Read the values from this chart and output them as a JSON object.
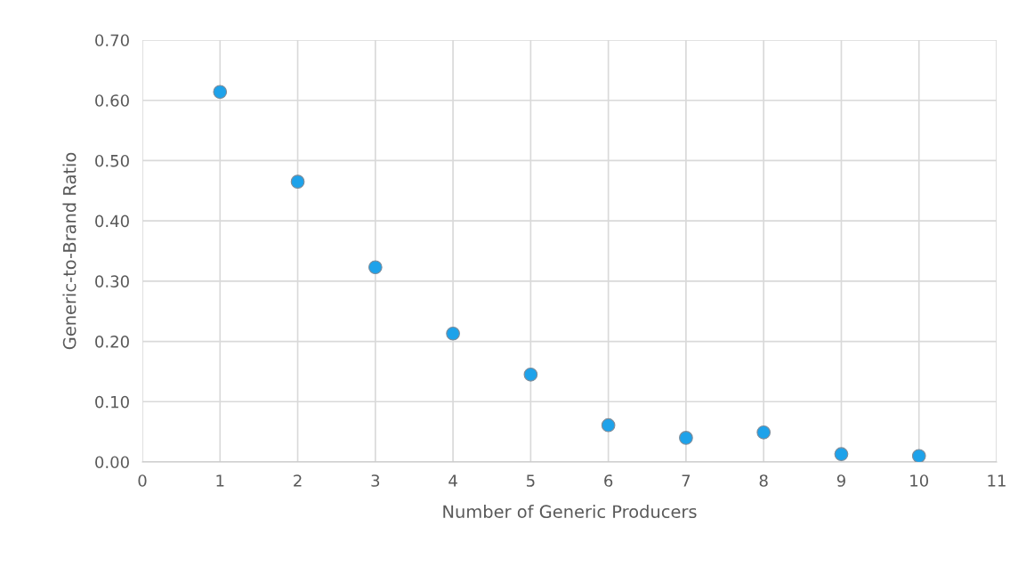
{
  "chart_data": {
    "type": "scatter",
    "xlabel": "Number of Generic Producers",
    "ylabel": "Generic-to-Brand Ratio",
    "x": [
      1,
      2,
      3,
      4,
      5,
      6,
      7,
      8,
      9,
      10
    ],
    "series": [
      {
        "color": "#1ea2ea",
        "values": [
          0.614,
          0.465,
          0.323,
          0.213,
          0.145,
          0.061,
          0.04,
          0.049,
          0.013,
          0.01
        ]
      }
    ],
    "xlim": [
      0,
      11
    ],
    "xticks": [
      0,
      1,
      2,
      3,
      4,
      5,
      6,
      7,
      8,
      9,
      10,
      11
    ],
    "ylim": [
      0,
      0.7
    ],
    "yticks": [
      {
        "value": 0,
        "label": "0.00"
      },
      {
        "value": 0.1,
        "label": "0.10"
      },
      {
        "value": 0.2,
        "label": "0.20"
      },
      {
        "value": 0.3,
        "label": "0.30"
      },
      {
        "value": 0.4,
        "label": "0.40"
      },
      {
        "value": 0.5,
        "label": "0.50"
      },
      {
        "value": 0.6,
        "label": "0.60"
      },
      {
        "value": 0.7,
        "label": "0.70"
      }
    ],
    "grid": true,
    "marker": "circle"
  }
}
